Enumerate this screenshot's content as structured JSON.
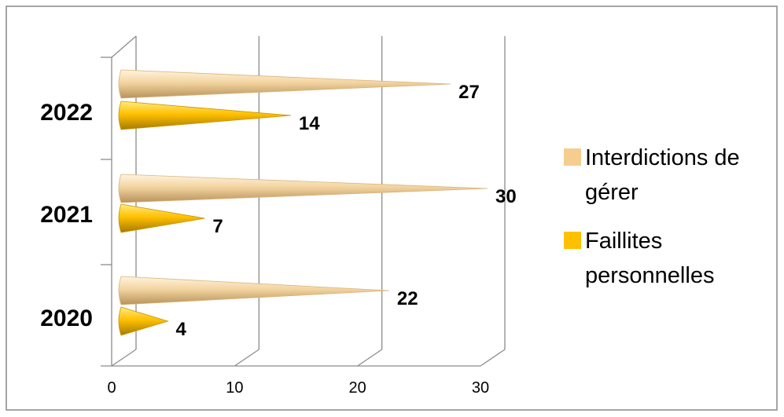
{
  "chart_data": {
    "type": "bar",
    "orientation": "horizontal",
    "style": "3d-cone",
    "categories": [
      "2020",
      "2021",
      "2022"
    ],
    "series": [
      {
        "name": "Interdictions de gérer",
        "values": [
          22,
          30,
          27
        ],
        "color": "#F5CE8F"
      },
      {
        "name": "Faillites personnelles",
        "values": [
          4,
          7,
          14
        ],
        "color": "#FFC000"
      }
    ],
    "xlim": [
      0,
      30
    ],
    "xticks": [
      "0",
      "10",
      "20",
      "30"
    ],
    "grid": true,
    "legend": "right",
    "legend_lines": [
      [
        "Interdictions de",
        "gérer"
      ],
      [
        "Faillites",
        "personnelles"
      ]
    ]
  }
}
